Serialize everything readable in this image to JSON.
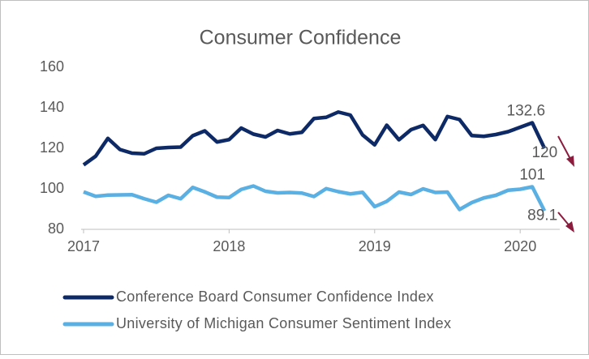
{
  "chart_data": {
    "type": "line",
    "title": "Consumer Confidence",
    "x": [
      2017,
      2017.083,
      2017.167,
      2017.25,
      2017.333,
      2017.417,
      2017.5,
      2017.583,
      2017.667,
      2017.75,
      2017.833,
      2017.917,
      2018,
      2018.083,
      2018.167,
      2018.25,
      2018.333,
      2018.417,
      2018.5,
      2018.583,
      2018.667,
      2018.75,
      2018.833,
      2018.917,
      2019,
      2019.083,
      2019.167,
      2019.25,
      2019.333,
      2019.417,
      2019.5,
      2019.583,
      2019.667,
      2019.75,
      2019.833,
      2019.917,
      2020,
      2020.083,
      2020.167
    ],
    "series": [
      {
        "name": "Conference Board Consumer Confidence Index",
        "color": "#0e2a66",
        "values": [
          111.8,
          116.1,
          124.9,
          119.4,
          117.6,
          117.3,
          120.0,
          120.4,
          120.6,
          126.2,
          128.6,
          123.1,
          124.3,
          130.0,
          127.0,
          125.6,
          128.8,
          127.1,
          127.9,
          134.7,
          135.3,
          137.9,
          136.4,
          126.6,
          121.7,
          131.4,
          124.2,
          129.2,
          131.3,
          124.3,
          135.7,
          134.2,
          126.3,
          125.9,
          126.8,
          128.2,
          130.4,
          132.6,
          120.0
        ],
        "value_labels": [
          null,
          null,
          null,
          null,
          null,
          null,
          null,
          null,
          null,
          null,
          null,
          null,
          null,
          null,
          null,
          null,
          null,
          null,
          null,
          null,
          null,
          null,
          null,
          null,
          null,
          null,
          null,
          null,
          null,
          null,
          null,
          null,
          null,
          null,
          null,
          null,
          null,
          "132.6",
          "120"
        ]
      },
      {
        "name": "University of Michigan Consumer Sentiment Index",
        "color": "#5aafe3",
        "values": [
          98.5,
          96.3,
          96.9,
          97.0,
          97.1,
          95.1,
          93.4,
          96.8,
          95.1,
          100.7,
          98.5,
          95.9,
          95.7,
          99.7,
          101.4,
          98.8,
          98.0,
          98.2,
          97.9,
          96.2,
          100.1,
          98.6,
          97.5,
          98.3,
          91.2,
          93.8,
          98.4,
          97.2,
          100.0,
          98.2,
          98.4,
          89.8,
          93.2,
          95.5,
          96.8,
          99.3,
          99.8,
          101.0,
          89.1
        ],
        "value_labels": [
          null,
          null,
          null,
          null,
          null,
          null,
          null,
          null,
          null,
          null,
          null,
          null,
          null,
          null,
          null,
          null,
          null,
          null,
          null,
          null,
          null,
          null,
          null,
          null,
          null,
          null,
          null,
          null,
          null,
          null,
          null,
          null,
          null,
          null,
          null,
          null,
          null,
          "101",
          "89.1"
        ]
      }
    ],
    "xlim": [
      2017,
      2020.3
    ],
    "xticks": [
      2017,
      2018,
      2019,
      2020
    ],
    "ylim": [
      80,
      160
    ],
    "yticks": [
      80,
      100,
      120,
      140,
      160
    ],
    "grid": false,
    "legend": "bottom"
  }
}
